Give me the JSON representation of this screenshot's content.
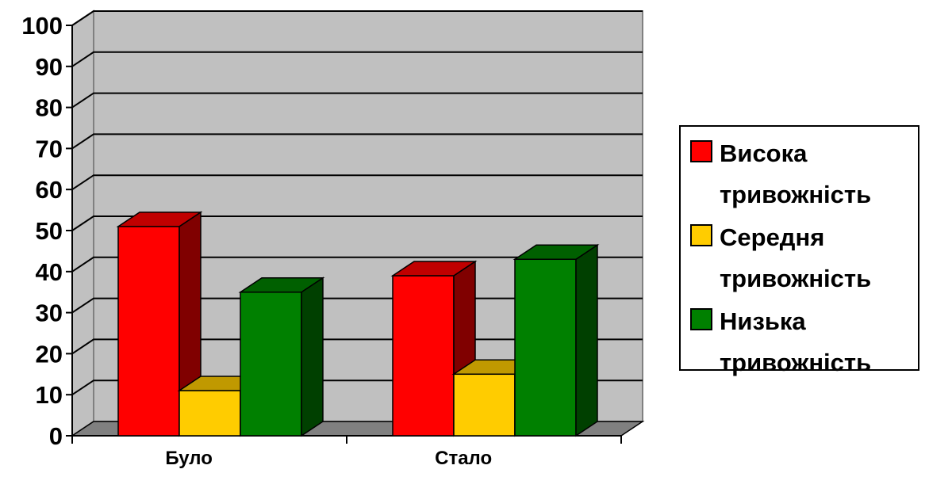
{
  "chart_data": {
    "type": "bar",
    "categories": [
      "Було",
      "Стало"
    ],
    "series": [
      {
        "name_lines": [
          "Висока",
          "тривожність"
        ],
        "values": [
          51,
          39
        ],
        "color": "#ff0000",
        "side_color": "#800000",
        "top_color": "#c00000"
      },
      {
        "name_lines": [
          "Середня",
          "тривожність"
        ],
        "values": [
          11,
          15
        ],
        "color": "#ffcc00",
        "side_color": "#806600",
        "top_color": "#c09900"
      },
      {
        "name_lines": [
          "Низька",
          "тривожність"
        ],
        "values": [
          35,
          43
        ],
        "color": "#008000",
        "side_color": "#004000",
        "top_color": "#006000"
      }
    ],
    "ylim": [
      0,
      100
    ],
    "y_ticks": [
      "0",
      "10",
      "20",
      "30",
      "40",
      "50",
      "60",
      "70",
      "80",
      "90",
      "100"
    ],
    "grid": true,
    "legend_position": "right",
    "three_d": true,
    "wall_color": "#c0c0c0",
    "floor_color": "#808080"
  }
}
